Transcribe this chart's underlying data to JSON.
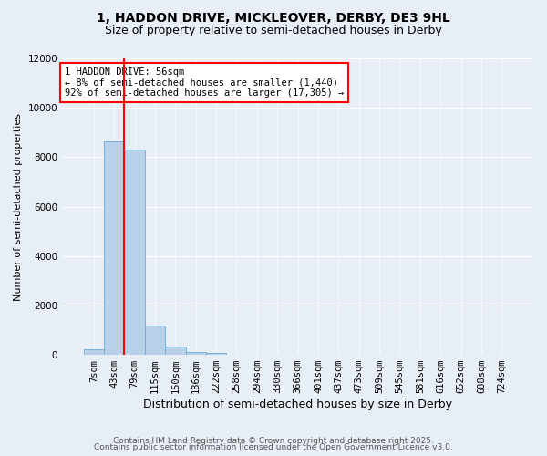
{
  "title1": "1, HADDON DRIVE, MICKLEOVER, DERBY, DE3 9HL",
  "title2": "Size of property relative to semi-detached houses in Derby",
  "xlabel": "Distribution of semi-detached houses by size in Derby",
  "ylabel": "Number of semi-detached properties",
  "bin_labels": [
    "7sqm",
    "43sqm",
    "79sqm",
    "115sqm",
    "150sqm",
    "186sqm",
    "222sqm",
    "258sqm",
    "294sqm",
    "330sqm",
    "366sqm",
    "401sqm",
    "437sqm",
    "473sqm",
    "509sqm",
    "545sqm",
    "581sqm",
    "616sqm",
    "652sqm",
    "688sqm",
    "724sqm"
  ],
  "values": [
    210,
    8650,
    8300,
    1200,
    350,
    100,
    70,
    10,
    5,
    2,
    1,
    0,
    0,
    0,
    0,
    0,
    0,
    0,
    0,
    0,
    0
  ],
  "bar_color": "#b8d0e8",
  "bar_edge_color": "#6aaad4",
  "property_line_color": "red",
  "property_line_x": 1.5,
  "annotation_text": "1 HADDON DRIVE: 56sqm\n← 8% of semi-detached houses are smaller (1,440)\n92% of semi-detached houses are larger (17,305) →",
  "annotation_box_color": "white",
  "annotation_box_edge": "red",
  "ylim": [
    0,
    12000
  ],
  "yticks": [
    0,
    2000,
    4000,
    6000,
    8000,
    10000,
    12000
  ],
  "bg_color": "#e8eef5",
  "footer1": "Contains HM Land Registry data © Crown copyright and database right 2025.",
  "footer2": "Contains public sector information licensed under the Open Government Licence v3.0.",
  "title1_fontsize": 10,
  "title2_fontsize": 9,
  "xlabel_fontsize": 9,
  "ylabel_fontsize": 8,
  "tick_fontsize": 7.5,
  "annot_fontsize": 7.5,
  "footer_fontsize": 6.5
}
